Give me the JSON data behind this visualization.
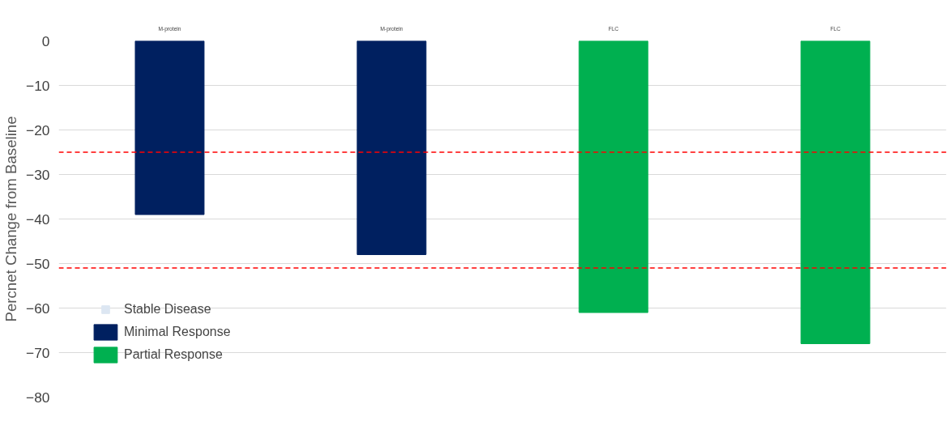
{
  "chart_data": {
    "type": "bar",
    "ylabel": "Percnet Change from Baseline",
    "categories": [
      "M-protein",
      "M-protein",
      "FLC",
      "FLC"
    ],
    "series": [
      {
        "name": "Stable Disease",
        "color": "#dce6f2",
        "values": [
          null,
          null,
          null,
          null
        ]
      },
      {
        "name": "Minimal Response",
        "color": "#002060",
        "values": [
          -39,
          -48,
          null,
          null
        ]
      },
      {
        "name": "Partial Response",
        "color": "#00b050",
        "values": [
          null,
          null,
          -61,
          -68
        ]
      }
    ],
    "ylim": [
      -80,
      0
    ],
    "yticks": [
      0,
      -10,
      -20,
      -30,
      -40,
      -50,
      -60,
      -70,
      -80
    ],
    "grid": "y",
    "legend": "bottom left",
    "ref_lines": [
      {
        "axis": "y",
        "value": -25,
        "color": "#ff0000",
        "line_style": "dashed"
      },
      {
        "axis": "y",
        "value": -51,
        "color": "#ff0000",
        "line_style": "dashed"
      }
    ]
  }
}
